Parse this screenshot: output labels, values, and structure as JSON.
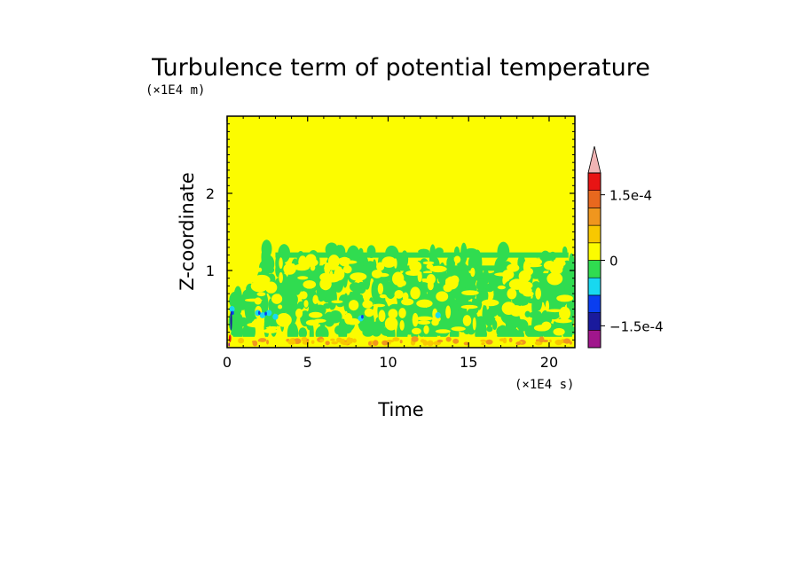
{
  "chart_data": {
    "type": "heatmap",
    "title": "Turbulence term of potential temperature",
    "xlabel": "Time",
    "ylabel": "Z-coordinate",
    "x_scale_label": "(×1E4 s)",
    "y_scale_label": "(×1E4 m)",
    "xlim": [
      0,
      21.6
    ],
    "ylim": [
      0,
      3.0
    ],
    "x_ticks": [
      0,
      5,
      10,
      15,
      20
    ],
    "x_tick_labels": [
      "0",
      "5",
      "10",
      "15",
      "20"
    ],
    "y_ticks": [
      1,
      2
    ],
    "y_tick_labels": [
      "1",
      "2"
    ],
    "colorbar": {
      "levels": [
        {
          "color": "#a0168c"
        },
        {
          "color": "#1a1a9c"
        },
        {
          "color": "#0a3ef0"
        },
        {
          "color": "#18d8f0"
        },
        {
          "color": "#30dc50"
        },
        {
          "color": "#fcfc00"
        },
        {
          "color": "#f8c800"
        },
        {
          "color": "#f0961e"
        },
        {
          "color": "#e8681e"
        },
        {
          "color": "#e81414"
        }
      ],
      "extend_color": "#f0b4b4",
      "tick_labels": [
        {
          "label": "1.5e-4",
          "value": 0.00015
        },
        {
          "label": "0",
          "value": 0
        },
        {
          "label": "−1.5e-4",
          "value": -0.00015
        }
      ],
      "range": [
        -0.0002,
        0.0002
      ]
    },
    "background_value_color": "#fcfc00",
    "regions": [
      {
        "level": "near-zero negative (green)",
        "x_range": [
          0.2,
          21.6
        ],
        "z_range": [
          0.1,
          1.45
        ]
      },
      {
        "level": "strong negative (cyan/blue)",
        "x_range": [
          0,
          3.5
        ],
        "z_range": [
          0.3,
          0.55
        ]
      },
      {
        "level": "positive (orange)",
        "x_range": [
          0,
          21.6
        ],
        "z_range": [
          0,
          0.12
        ]
      }
    ]
  }
}
